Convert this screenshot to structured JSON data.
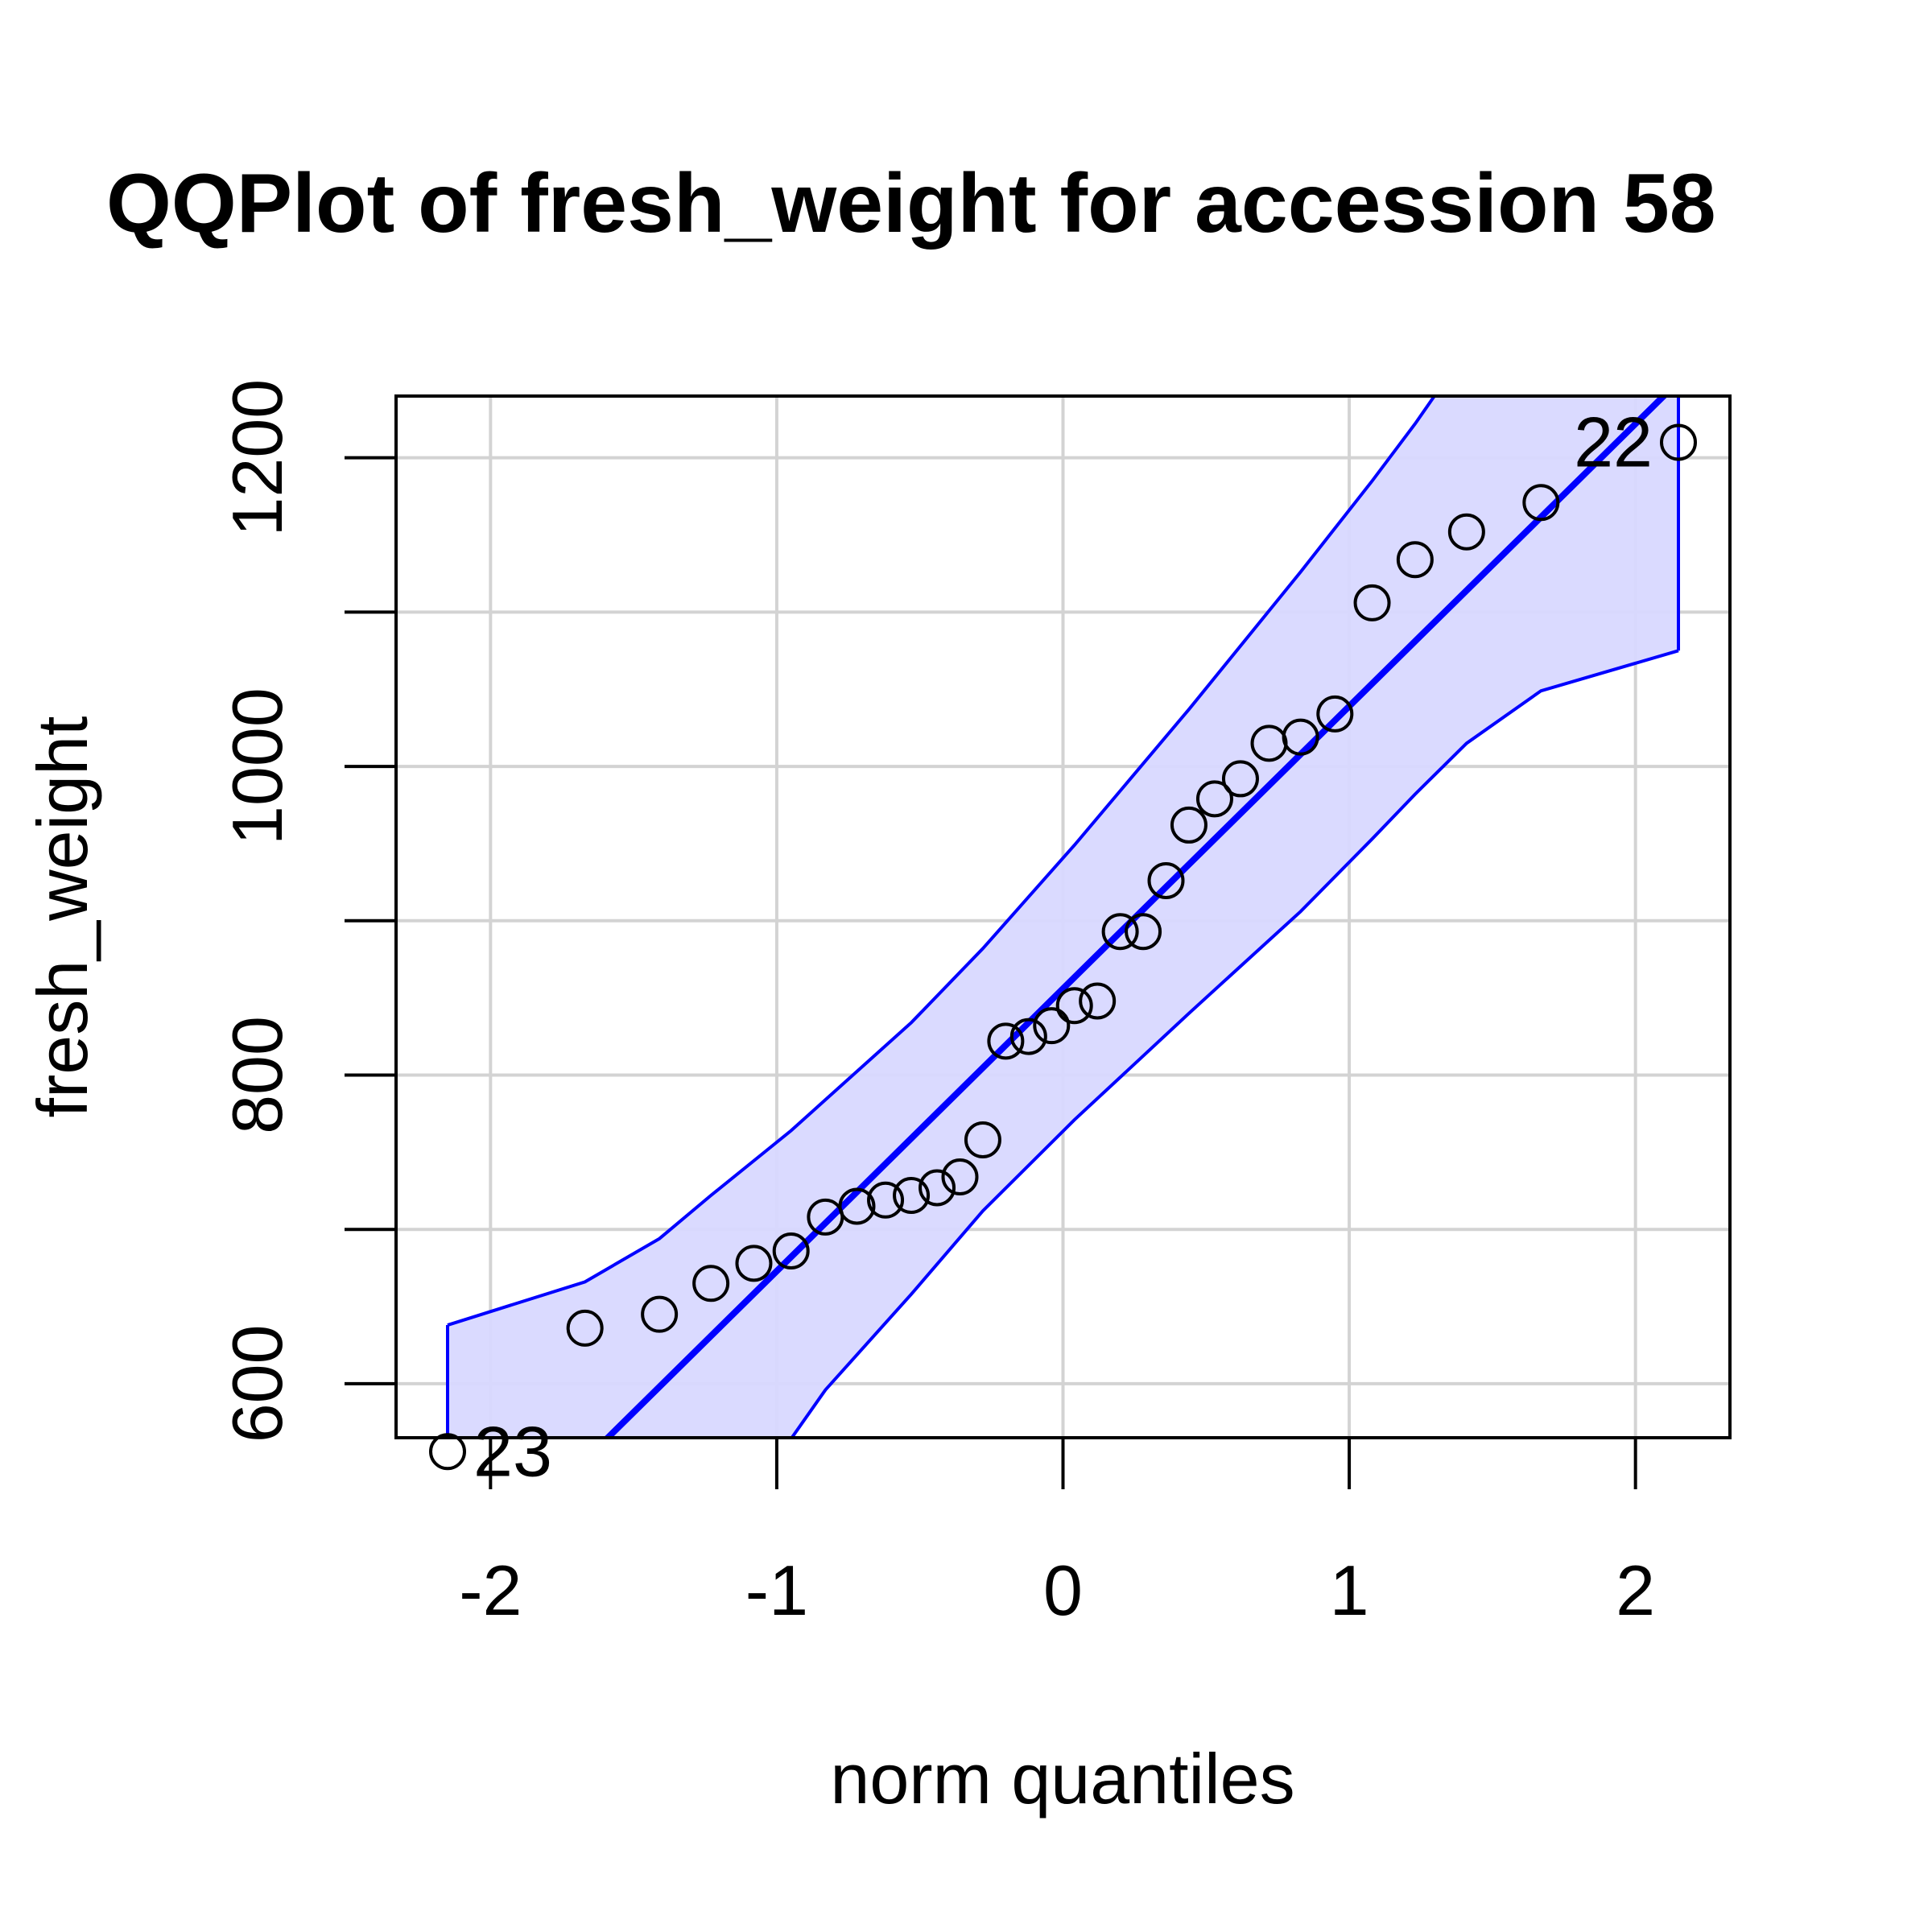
{
  "chart_data": {
    "type": "scatter",
    "title": "QQPlot of fresh_weight for accession 58",
    "xlabel": "norm quantiles",
    "ylabel": "fresh_weight",
    "xlim": [
      -2.33,
      2.33
    ],
    "ylim": [
      565,
      1240
    ],
    "x_ticks": [
      -2,
      -1,
      0,
      1,
      2
    ],
    "x_tick_labels": [
      "-2",
      "-1",
      "0",
      "1",
      "2"
    ],
    "y_ticks": [
      600,
      800,
      1000,
      1200
    ],
    "y_tick_labels": [
      "600",
      "800",
      "1000",
      "1200"
    ],
    "y_minor_ticks": [
      700,
      900,
      1100
    ],
    "grid": true,
    "points": [
      {
        "x": -2.15,
        "y": 556
      },
      {
        "x": -1.67,
        "y": 636
      },
      {
        "x": -1.41,
        "y": 645
      },
      {
        "x": -1.23,
        "y": 665
      },
      {
        "x": -1.08,
        "y": 678
      },
      {
        "x": -0.95,
        "y": 686
      },
      {
        "x": -0.83,
        "y": 708
      },
      {
        "x": -0.72,
        "y": 715
      },
      {
        "x": -0.62,
        "y": 719
      },
      {
        "x": -0.53,
        "y": 722
      },
      {
        "x": -0.44,
        "y": 727
      },
      {
        "x": -0.36,
        "y": 734
      },
      {
        "x": -0.28,
        "y": 758
      },
      {
        "x": -0.2,
        "y": 822
      },
      {
        "x": -0.12,
        "y": 825
      },
      {
        "x": -0.04,
        "y": 832
      },
      {
        "x": 0.04,
        "y": 845
      },
      {
        "x": 0.12,
        "y": 848
      },
      {
        "x": 0.2,
        "y": 893
      },
      {
        "x": 0.28,
        "y": 893
      },
      {
        "x": 0.36,
        "y": 926
      },
      {
        "x": 0.44,
        "y": 962
      },
      {
        "x": 0.53,
        "y": 979
      },
      {
        "x": 0.62,
        "y": 992
      },
      {
        "x": 0.72,
        "y": 1015
      },
      {
        "x": 0.83,
        "y": 1019
      },
      {
        "x": 0.95,
        "y": 1034
      },
      {
        "x": 1.08,
        "y": 1106
      },
      {
        "x": 1.23,
        "y": 1134
      },
      {
        "x": 1.41,
        "y": 1152
      },
      {
        "x": 1.67,
        "y": 1171
      },
      {
        "x": 2.15,
        "y": 1210
      }
    ],
    "labeled_points": [
      {
        "text": "23",
        "x": -2.15,
        "y": 556
      },
      {
        "text": "22",
        "x": 2.15,
        "y": 1210
      }
    ],
    "reference_line": {
      "intercept": 856,
      "slope": 183
    },
    "envelope_upper": [
      {
        "x": -2.15,
        "y": 638
      },
      {
        "x": -1.67,
        "y": 666
      },
      {
        "x": -1.41,
        "y": 694
      },
      {
        "x": -1.23,
        "y": 722
      },
      {
        "x": -0.95,
        "y": 764
      },
      {
        "x": -0.53,
        "y": 834
      },
      {
        "x": -0.28,
        "y": 882
      },
      {
        "x": 0.04,
        "y": 949
      },
      {
        "x": 0.44,
        "y": 1037
      },
      {
        "x": 0.83,
        "y": 1126
      },
      {
        "x": 1.08,
        "y": 1185
      },
      {
        "x": 1.23,
        "y": 1222
      },
      {
        "x": 1.41,
        "y": 1270
      },
      {
        "x": 1.67,
        "y": 1340
      },
      {
        "x": 2.15,
        "y": 1480
      }
    ],
    "envelope_lower": [
      {
        "x": -2.15,
        "y": 270
      },
      {
        "x": -1.67,
        "y": 390
      },
      {
        "x": -1.41,
        "y": 450
      },
      {
        "x": -1.08,
        "y": 530
      },
      {
        "x": -0.83,
        "y": 596
      },
      {
        "x": -0.53,
        "y": 658
      },
      {
        "x": -0.28,
        "y": 712
      },
      {
        "x": 0.04,
        "y": 771
      },
      {
        "x": 0.44,
        "y": 840
      },
      {
        "x": 0.83,
        "y": 906
      },
      {
        "x": 1.08,
        "y": 953
      },
      {
        "x": 1.23,
        "y": 982
      },
      {
        "x": 1.41,
        "y": 1015
      },
      {
        "x": 1.67,
        "y": 1049
      },
      {
        "x": 2.15,
        "y": 1075
      }
    ],
    "colors": {
      "line": "#0000ff",
      "band": "#d8d8ff",
      "grid": "#d3d3d3",
      "points": "#000000",
      "axis": "#000000"
    }
  }
}
